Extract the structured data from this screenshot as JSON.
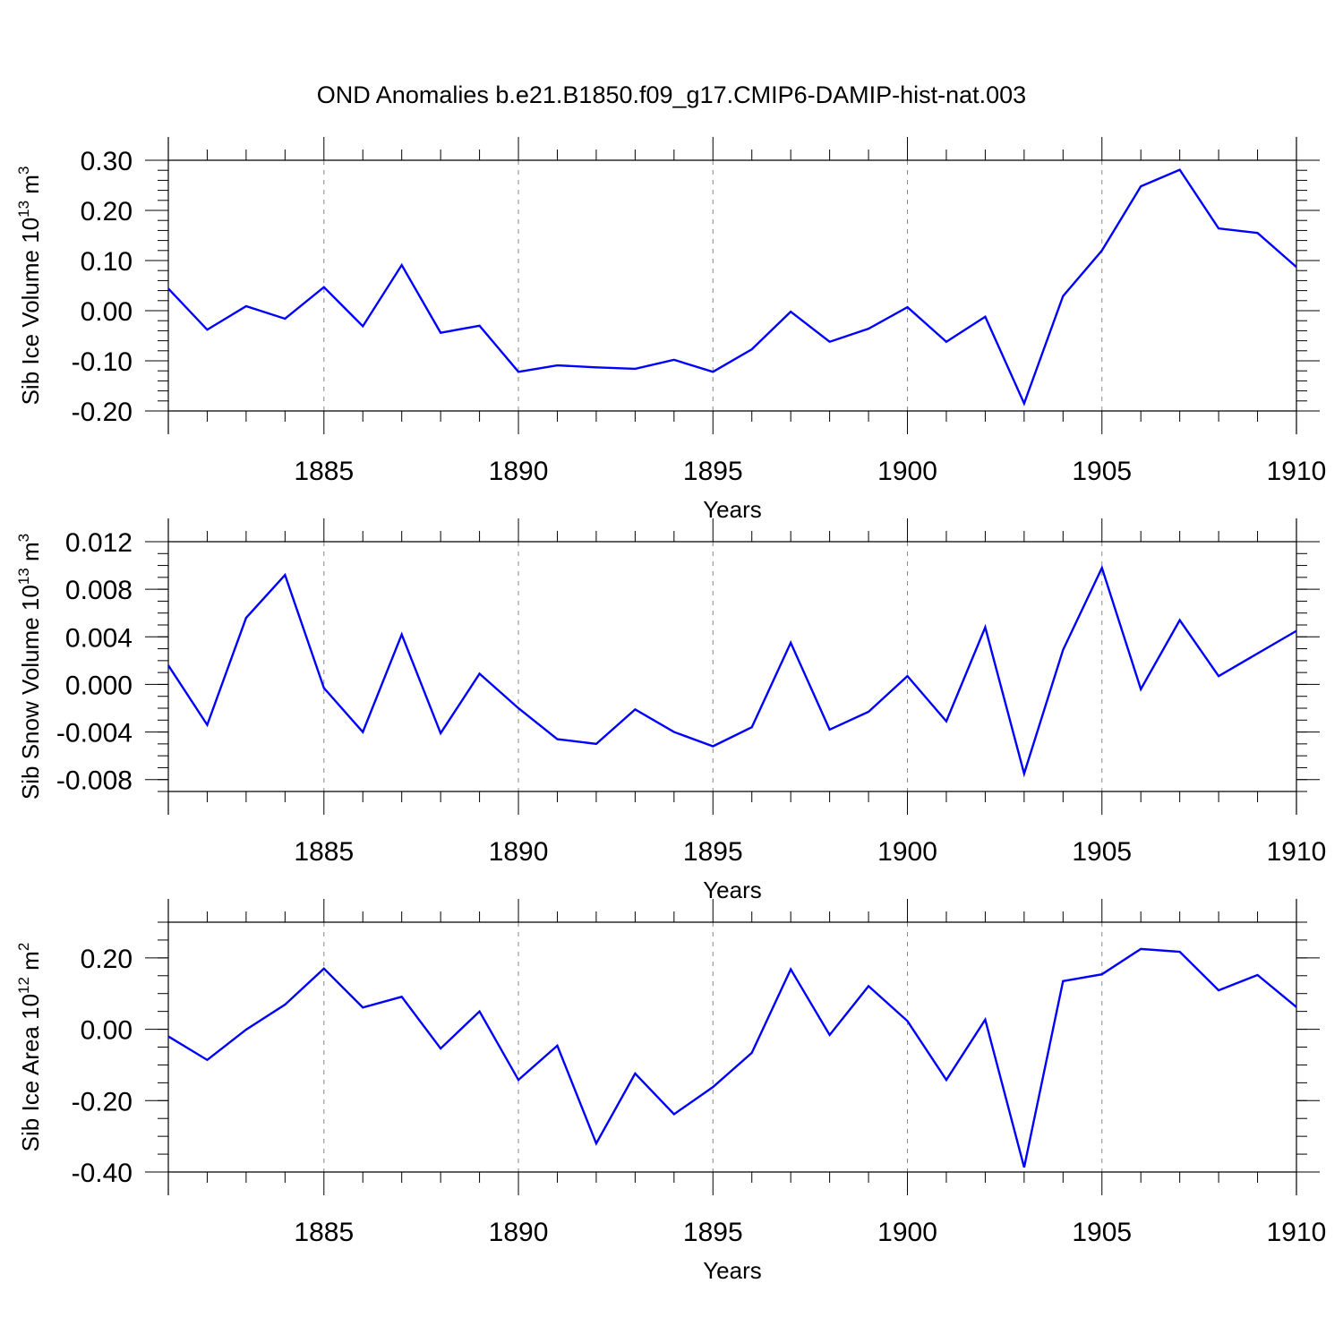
{
  "title": "OND Anomalies b.e21.B1850.f09_g17.CMIP6-DAMIP-hist-nat.003",
  "colors": {
    "line": "#0000ff",
    "axis": "#000000",
    "grid": "#888888"
  },
  "chart_data": [
    {
      "type": "line",
      "name": "ice-volume",
      "ylabel": {
        "text": "Sib Ice Volume 10",
        "sup1": "13",
        "unit": " m",
        "sup2": "3"
      },
      "xlabel": "Years",
      "xlim": [
        1881,
        1910
      ],
      "ylim": [
        -0.2,
        0.3
      ],
      "yticks": [
        -0.2,
        -0.1,
        0.0,
        0.1,
        0.2,
        0.3
      ],
      "ytick_labels": [
        "-0.20",
        "-0.10",
        "0.00",
        "0.10",
        "0.20",
        "0.30"
      ],
      "yminor_step": 0.02,
      "xticks": [
        1885,
        1890,
        1895,
        1900,
        1905,
        1910
      ],
      "xtick_labels": [
        "1885",
        "1890",
        "1895",
        "1900",
        "1905",
        "1910"
      ],
      "grid": "vertical-dashed-at-major-x",
      "x": [
        1881,
        1882,
        1883,
        1884,
        1885,
        1886,
        1887,
        1888,
        1889,
        1890,
        1891,
        1892,
        1893,
        1894,
        1895,
        1896,
        1897,
        1898,
        1899,
        1900,
        1901,
        1902,
        1903,
        1904,
        1905,
        1906,
        1907,
        1908,
        1909,
        1910
      ],
      "values": [
        0.044,
        -0.038,
        0.009,
        -0.016,
        0.047,
        -0.031,
        0.091,
        -0.044,
        -0.03,
        -0.122,
        -0.109,
        -0.113,
        -0.116,
        -0.098,
        -0.122,
        -0.077,
        -0.002,
        -0.062,
        -0.036,
        0.007,
        -0.062,
        -0.012,
        -0.185,
        0.029,
        0.12,
        0.248,
        0.281,
        0.164,
        0.155,
        0.087
      ]
    },
    {
      "type": "line",
      "name": "snow-volume",
      "ylabel": {
        "text": "Sib Snow Volume 10",
        "sup1": "13",
        "unit": " m",
        "sup2": "3"
      },
      "xlabel": "Years",
      "xlim": [
        1881,
        1910
      ],
      "ylim": [
        -0.009,
        0.012
      ],
      "yticks": [
        -0.008,
        -0.004,
        0.0,
        0.004,
        0.008,
        0.012
      ],
      "ytick_labels": [
        "-0.008",
        "-0.004",
        "0.000",
        "0.004",
        "0.008",
        "0.012"
      ],
      "yminor_step": 0.001,
      "xticks": [
        1885,
        1890,
        1895,
        1900,
        1905,
        1910
      ],
      "xtick_labels": [
        "1885",
        "1890",
        "1895",
        "1900",
        "1905",
        "1910"
      ],
      "grid": "vertical-dashed-at-major-x",
      "x": [
        1881,
        1882,
        1883,
        1884,
        1885,
        1886,
        1887,
        1888,
        1889,
        1890,
        1891,
        1892,
        1893,
        1894,
        1895,
        1896,
        1897,
        1898,
        1899,
        1900,
        1901,
        1902,
        1903,
        1904,
        1905,
        1906,
        1907,
        1908,
        1909,
        1910
      ],
      "values": [
        0.0016,
        -0.0034,
        0.0056,
        0.0092,
        -0.0003,
        -0.004,
        0.0042,
        -0.0041,
        0.0009,
        -0.002,
        -0.0046,
        -0.005,
        -0.0021,
        -0.004,
        -0.0052,
        -0.0036,
        0.0035,
        -0.0038,
        -0.0023,
        0.0007,
        -0.0031,
        0.0048,
        -0.0075,
        0.0029,
        0.0098,
        -0.0004,
        0.0054,
        0.0007,
        0.0026,
        0.0045
      ]
    },
    {
      "type": "line",
      "name": "ice-area",
      "ylabel": {
        "text": "Sib Ice Area 10",
        "sup1": "12",
        "unit": " m",
        "sup2": "2"
      },
      "xlabel": "Years",
      "xlim": [
        1881,
        1910
      ],
      "ylim": [
        -0.4,
        0.3
      ],
      "yticks": [
        -0.4,
        -0.2,
        0.0,
        0.2
      ],
      "ytick_labels": [
        "-0.40",
        "-0.20",
        "0.00",
        "0.20"
      ],
      "yminor_step": 0.05,
      "xticks": [
        1885,
        1890,
        1895,
        1900,
        1905,
        1910
      ],
      "xtick_labels": [
        "1885",
        "1890",
        "1895",
        "1900",
        "1905",
        "1910"
      ],
      "grid": "vertical-dashed-at-major-x",
      "x": [
        1881,
        1882,
        1883,
        1884,
        1885,
        1886,
        1887,
        1888,
        1889,
        1890,
        1891,
        1892,
        1893,
        1894,
        1895,
        1896,
        1897,
        1898,
        1899,
        1900,
        1901,
        1902,
        1903,
        1904,
        1905,
        1906,
        1907,
        1908,
        1909,
        1910
      ],
      "values": [
        -0.02,
        -0.086,
        -0.001,
        0.069,
        0.17,
        0.061,
        0.091,
        -0.054,
        0.05,
        -0.142,
        -0.046,
        -0.32,
        -0.124,
        -0.238,
        -0.162,
        -0.066,
        0.168,
        -0.016,
        0.121,
        0.023,
        -0.142,
        0.027,
        -0.387,
        0.135,
        0.154,
        0.225,
        0.217,
        0.109,
        0.152,
        0.062
      ]
    }
  ]
}
